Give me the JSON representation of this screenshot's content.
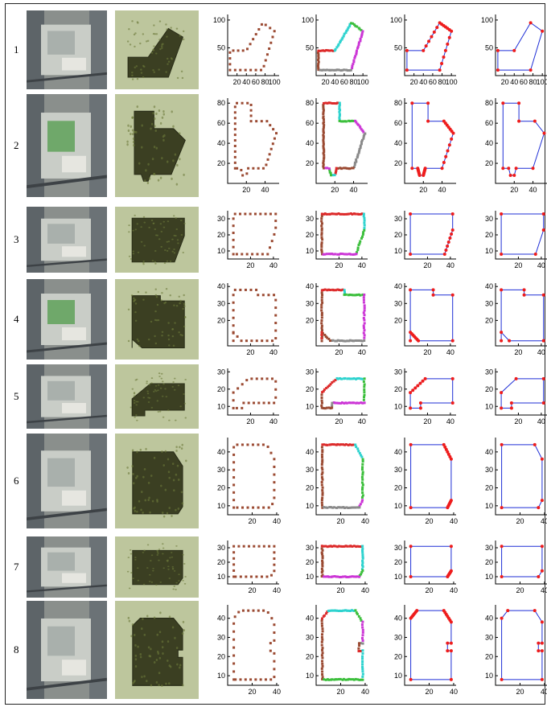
{
  "figure": {
    "columns": [
      "aerial-photo",
      "lidar-points",
      "boundary-points",
      "segmented-boundary",
      "regularized-outline",
      "final-outline"
    ],
    "rows": [
      {
        "label": "1",
        "x_ticks": [
          "20",
          "40",
          "60",
          "80",
          "100"
        ],
        "y_ticks": [
          "50",
          "100"
        ],
        "x_ticks_alt": [
          "20",
          "40",
          "60",
          "80",
          "100"
        ]
      },
      {
        "label": "2",
        "x_ticks": [
          "20",
          "40"
        ],
        "y_ticks": [
          "20",
          "40",
          "60",
          "80"
        ]
      },
      {
        "label": "3",
        "x_ticks": [
          "20",
          "40"
        ],
        "y_ticks": [
          "10",
          "20",
          "30"
        ]
      },
      {
        "label": "4",
        "x_ticks": [
          "20",
          "40"
        ],
        "y_ticks": [
          "20",
          "30",
          "40"
        ]
      },
      {
        "label": "5",
        "x_ticks": [
          "20",
          "40"
        ],
        "y_ticks": [
          "10",
          "20",
          "30"
        ]
      },
      {
        "label": "6",
        "x_ticks": [
          "20",
          "40"
        ],
        "y_ticks": [
          "10",
          "20",
          "30",
          "40"
        ]
      },
      {
        "label": "7",
        "x_ticks": [
          "20",
          "40"
        ],
        "y_ticks": [
          "10",
          "20",
          "30"
        ]
      },
      {
        "label": "8",
        "x_ticks": [
          "20",
          "40"
        ],
        "y_ticks": [
          "10",
          "20",
          "30",
          "40"
        ]
      }
    ],
    "colors": {
      "points": "#9b4a32",
      "outline": "#1f2fd6",
      "corners": "#ee1c1c",
      "seg_red": "#dd2b2b",
      "seg_cyan": "#2ed3cf",
      "seg_green": "#3cbf3c",
      "seg_magenta": "#cc36d6",
      "seg_brown": "#9b4a32",
      "seg_gray": "#8a8a8a"
    }
  },
  "chart_data": [
    {
      "type": "scatter",
      "row": 1,
      "xlim": [
        0,
        110
      ],
      "ylim": [
        0,
        110
      ],
      "outline": [
        [
          5,
          10
        ],
        [
          5,
          45
        ],
        [
          40,
          45
        ],
        [
          75,
          95
        ],
        [
          100,
          80
        ],
        [
          75,
          10
        ]
      ]
    },
    {
      "type": "scatter",
      "row": 2,
      "xlim": [
        0,
        55
      ],
      "ylim": [
        0,
        85
      ],
      "outline": [
        [
          8,
          15
        ],
        [
          8,
          80
        ],
        [
          25,
          80
        ],
        [
          25,
          62
        ],
        [
          42,
          62
        ],
        [
          52,
          50
        ],
        [
          40,
          15
        ],
        [
          22,
          15
        ],
        [
          20,
          8
        ],
        [
          16,
          8
        ],
        [
          14,
          15
        ]
      ]
    },
    {
      "type": "scatter",
      "row": 3,
      "xlim": [
        0,
        45
      ],
      "ylim": [
        5,
        35
      ],
      "outline": [
        [
          5,
          8
        ],
        [
          5,
          33
        ],
        [
          42,
          33
        ],
        [
          42,
          23
        ],
        [
          35,
          8
        ]
      ]
    },
    {
      "type": "scatter",
      "row": 4,
      "xlim": [
        0,
        45
      ],
      "ylim": [
        5,
        42
      ],
      "outline": [
        [
          5,
          8
        ],
        [
          5,
          38
        ],
        [
          25,
          38
        ],
        [
          25,
          35
        ],
        [
          42,
          35
        ],
        [
          42,
          8
        ],
        [
          12,
          8
        ],
        [
          5,
          13
        ]
      ]
    },
    {
      "type": "scatter",
      "row": 5,
      "xlim": [
        0,
        45
      ],
      "ylim": [
        5,
        32
      ],
      "outline": [
        [
          5,
          9
        ],
        [
          5,
          18
        ],
        [
          18,
          26
        ],
        [
          42,
          26
        ],
        [
          42,
          12
        ],
        [
          14,
          12
        ],
        [
          14,
          9
        ]
      ]
    },
    {
      "type": "scatter",
      "row": 6,
      "xlim": [
        0,
        42
      ],
      "ylim": [
        5,
        48
      ],
      "outline": [
        [
          5,
          9
        ],
        [
          5,
          44
        ],
        [
          32,
          44
        ],
        [
          38,
          36
        ],
        [
          38,
          13
        ],
        [
          35,
          9
        ]
      ]
    },
    {
      "type": "scatter",
      "row": 7,
      "xlim": [
        0,
        42
      ],
      "ylim": [
        5,
        35
      ],
      "outline": [
        [
          5,
          10
        ],
        [
          5,
          31
        ],
        [
          38,
          31
        ],
        [
          38,
          14
        ],
        [
          35,
          10
        ]
      ]
    },
    {
      "type": "scatter",
      "row": 8,
      "xlim": [
        0,
        42
      ],
      "ylim": [
        5,
        47
      ],
      "outline": [
        [
          5,
          8
        ],
        [
          5,
          40
        ],
        [
          10,
          44
        ],
        [
          32,
          44
        ],
        [
          38,
          38
        ],
        [
          38,
          27
        ],
        [
          35,
          27
        ],
        [
          35,
          23
        ],
        [
          38,
          23
        ],
        [
          38,
          8
        ]
      ]
    }
  ]
}
